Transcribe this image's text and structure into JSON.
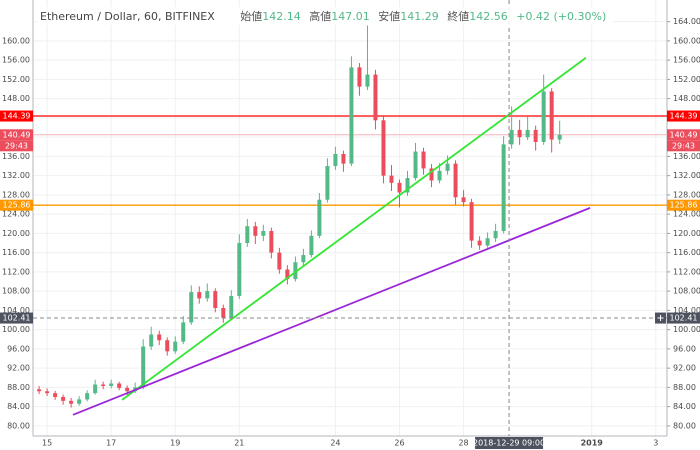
{
  "chart_data": {
    "type": "candlestick",
    "title": "Ethereum / Dollar, 60, BITFINEX",
    "legend": [
      {
        "label": "始値",
        "value": 142.14
      },
      {
        "label": "高値",
        "value": 147.01
      },
      {
        "label": "安値",
        "value": 141.29
      },
      {
        "label": "終値",
        "value": 142.56
      }
    ],
    "change": "+0.42 (+0.30%)",
    "up_color": "#53b987",
    "down_color": "#eb4d5c",
    "x": [
      14.75,
      15,
      15.25,
      15.5,
      15.75,
      16,
      16.25,
      16.5,
      16.75,
      17,
      17.25,
      17.5,
      17.75,
      18,
      18.25,
      18.5,
      18.75,
      19,
      19.25,
      19.5,
      19.75,
      20,
      20.25,
      20.5,
      20.75,
      21,
      21.25,
      21.5,
      21.75,
      22,
      22.25,
      22.5,
      22.75,
      23,
      23.25,
      23.5,
      23.75,
      24,
      24.25,
      24.5,
      24.75,
      25,
      25.25,
      25.5,
      25.75,
      26,
      26.25,
      26.5,
      26.75,
      27,
      27.25,
      27.5,
      27.75,
      28,
      28.25,
      28.5,
      28.75,
      29,
      29.25,
      29.5,
      29.75,
      30,
      30.25,
      30.5,
      30.75,
      31
    ],
    "candles": [
      [
        87.6,
        88.3,
        86.6,
        87.2
      ],
      [
        87.2,
        87.8,
        86.2,
        86.8
      ],
      [
        86.8,
        87.3,
        85.4,
        86.0
      ],
      [
        86.0,
        86.5,
        84.4,
        85.2
      ],
      [
        85.2,
        85.8,
        83.8,
        84.6
      ],
      [
        84.6,
        86.2,
        84.2,
        85.5
      ],
      [
        85.5,
        87.4,
        85.1,
        86.8
      ],
      [
        86.8,
        89.6,
        86.5,
        88.6
      ],
      [
        88.6,
        89.2,
        87.6,
        88.3
      ],
      [
        88.3,
        89.6,
        87.8,
        88.8
      ],
      [
        88.8,
        89.2,
        87.4,
        87.9
      ],
      [
        87.9,
        88.4,
        86.4,
        87.2
      ],
      [
        87.2,
        89.0,
        86.8,
        88.0
      ],
      [
        88.0,
        98.0,
        87.6,
        96.5
      ],
      [
        96.5,
        100.6,
        95.8,
        99.0
      ],
      [
        99.0,
        99.8,
        96.8,
        97.8
      ],
      [
        97.8,
        98.4,
        94.6,
        95.5
      ],
      [
        95.5,
        98.6,
        95.0,
        97.5
      ],
      [
        97.5,
        102.8,
        97.0,
        101.5
      ],
      [
        101.5,
        109.2,
        101.0,
        107.8
      ],
      [
        107.8,
        109.0,
        105.4,
        106.5
      ],
      [
        106.5,
        109.6,
        105.8,
        108.0
      ],
      [
        108.0,
        108.6,
        103.6,
        104.5
      ],
      [
        104.5,
        105.2,
        101.4,
        102.5
      ],
      [
        102.5,
        108.2,
        102.0,
        107.0
      ],
      [
        107.0,
        119.8,
        106.4,
        118.0
      ],
      [
        118.0,
        123.0,
        117.2,
        121.5
      ],
      [
        121.5,
        122.4,
        117.8,
        119.5
      ],
      [
        119.5,
        121.8,
        118.4,
        120.5
      ],
      [
        120.5,
        121.2,
        114.8,
        116.0
      ],
      [
        116.0,
        117.0,
        111.6,
        112.5
      ],
      [
        112.5,
        113.4,
        109.4,
        110.5
      ],
      [
        110.5,
        115.2,
        110.0,
        114.0
      ],
      [
        114.0,
        116.8,
        113.2,
        115.5
      ],
      [
        115.5,
        120.6,
        115.0,
        119.5
      ],
      [
        119.5,
        128.4,
        119.0,
        127.0
      ],
      [
        127.0,
        135.6,
        126.4,
        134.0
      ],
      [
        134.0,
        138.0,
        133.2,
        136.5
      ],
      [
        136.5,
        137.2,
        132.8,
        134.5
      ],
      [
        134.5,
        156.8,
        134.0,
        154.5
      ],
      [
        154.5,
        155.4,
        148.6,
        150.5
      ],
      [
        150.5,
        163.2,
        149.8,
        153.0
      ],
      [
        153.0,
        154.0,
        141.6,
        143.5
      ],
      [
        143.5,
        144.6,
        130.4,
        132.0
      ],
      [
        132.0,
        134.2,
        128.8,
        130.5
      ],
      [
        130.5,
        131.2,
        125.4,
        128.5
      ],
      [
        128.5,
        133.0,
        127.8,
        131.5
      ],
      [
        131.5,
        138.8,
        131.0,
        137.0
      ],
      [
        137.0,
        137.8,
        132.2,
        133.5
      ],
      [
        133.5,
        134.4,
        129.6,
        131.0
      ],
      [
        131.0,
        134.6,
        130.4,
        133.0
      ],
      [
        133.0,
        136.2,
        132.2,
        134.5
      ],
      [
        134.5,
        135.2,
        126.0,
        127.5
      ],
      [
        127.5,
        129.0,
        125.6,
        126.5
      ],
      [
        126.5,
        127.2,
        117.0,
        118.5
      ],
      [
        118.5,
        119.4,
        116.6,
        117.5
      ],
      [
        117.5,
        120.2,
        117.0,
        119.0
      ],
      [
        119.0,
        122.0,
        118.2,
        120.5
      ],
      [
        120.5,
        140.2,
        120.0,
        138.5
      ],
      [
        138.5,
        146.4,
        137.6,
        141.5
      ],
      [
        141.5,
        143.6,
        138.4,
        140.0
      ],
      [
        140.0,
        144.2,
        139.4,
        141.5
      ],
      [
        141.5,
        142.4,
        137.2,
        139.0
      ],
      [
        139.0,
        153.0,
        138.4,
        149.5
      ],
      [
        149.5,
        150.2,
        136.8,
        139.5
      ],
      [
        139.5,
        143.4,
        138.6,
        140.49
      ]
    ],
    "xlim": [
      14.56,
      34.35
    ],
    "xticks": [
      15,
      17,
      19,
      21,
      24,
      26,
      28,
      {
        "value": 32,
        "label": "2019"
      },
      {
        "value": 34,
        "label": "3"
      }
    ],
    "ylim": [
      77.9,
      168.5
    ],
    "yticks": [
      {
        "value": 80,
        "label": "80.00"
      },
      {
        "value": 84,
        "label": "84.00"
      },
      {
        "value": 88,
        "label": "88.00"
      },
      {
        "value": 92,
        "label": "92.00"
      },
      {
        "value": 96,
        "label": "96.00"
      },
      {
        "value": 100,
        "label": "100.00"
      },
      {
        "value": 104,
        "label": "104.00"
      },
      {
        "value": 108,
        "label": "108.00"
      },
      {
        "value": 112,
        "label": "112.00"
      },
      {
        "value": 116,
        "label": "116.00"
      },
      {
        "value": 120,
        "label": "120.00"
      },
      {
        "value": 124,
        "label": "124.00"
      },
      {
        "value": 128,
        "label": "128.00"
      },
      {
        "value": 132,
        "label": "132.00"
      },
      {
        "value": 136,
        "label": "136.00"
      },
      {
        "value": 140,
        "label": "140.00"
      },
      {
        "value": 144,
        "label": "144.00"
      },
      {
        "value": 148,
        "label": "148.00"
      },
      {
        "value": 152,
        "label": "152.00"
      },
      {
        "value": 156,
        "label": "156.00"
      },
      {
        "value": 160,
        "label": "160.00"
      },
      {
        "value": 164,
        "label": "164.00"
      }
    ],
    "grid": true,
    "horizontal_lines": [
      {
        "value": 144.39,
        "color": "#ff0000"
      },
      {
        "value": 125.86,
        "color": "#ff9800"
      }
    ],
    "trendlines": [
      {
        "color": "#33e633",
        "points": [
          [
            17.34,
            85.4
          ],
          [
            31.82,
            156.5
          ]
        ]
      },
      {
        "color": "#9c27d9",
        "points": [
          [
            15.81,
            82.3
          ],
          [
            31.95,
            125.3
          ]
        ]
      }
    ],
    "last_price": 140.49,
    "countdown": "29:43",
    "crosshair": {
      "x": 29.42,
      "x_label": "2018-12-29  09:00",
      "y": 102.41
    }
  }
}
